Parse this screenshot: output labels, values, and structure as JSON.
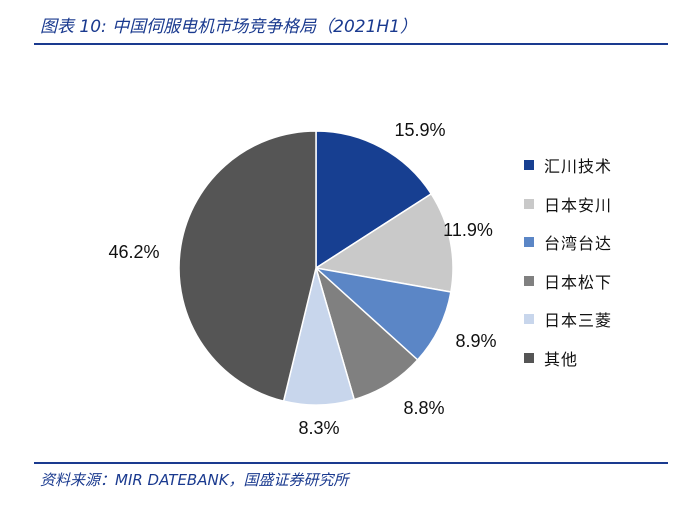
{
  "header": {
    "title": "图表 10:  中国伺服电机市场竞争格局（2021H1）"
  },
  "footer": {
    "source": "资料来源：MIR DATEBANK，国盛证券研究所"
  },
  "chart_data": {
    "type": "pie",
    "title": "图表 10:  中国伺服电机市场竞争格局（2021H1）",
    "legend_position": "right",
    "slices": [
      {
        "label": "汇川技术",
        "value": 15.9,
        "value_label": "15.9%",
        "color": "#173f91"
      },
      {
        "label": "日本安川",
        "value": 11.9,
        "value_label": "11.9%",
        "color": "#c9c9c9"
      },
      {
        "label": "台湾台达",
        "value": 8.9,
        "value_label": "8.9%",
        "color": "#5b86c6"
      },
      {
        "label": "日本松下",
        "value": 8.8,
        "value_label": "8.8%",
        "color": "#808080"
      },
      {
        "label": "日本三菱",
        "value": 8.3,
        "value_label": "8.3%",
        "color": "#c8d6ec"
      },
      {
        "label": "其他",
        "value": 46.2,
        "value_label": "46.2%",
        "color": "#555555"
      }
    ]
  }
}
